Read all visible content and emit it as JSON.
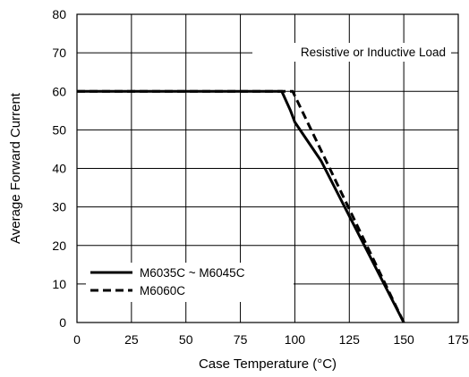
{
  "chart_data": {
    "type": "line",
    "title": "",
    "xlabel": "Case Temperature (°C)",
    "ylabel": "Average Forward Current",
    "xlim": [
      0,
      175
    ],
    "ylim": [
      0,
      80
    ],
    "xticks": [
      "0",
      "25",
      "50",
      "75",
      "100",
      "125",
      "150",
      "175"
    ],
    "yticks": [
      "0",
      "10",
      "20",
      "30",
      "40",
      "50",
      "60",
      "70",
      "80"
    ],
    "grid": true,
    "annotation": "Resistive or Inductive Load",
    "legend_position": "bottom-left",
    "series": [
      {
        "name": "M6035C ~ M6045C",
        "style": "solid",
        "color": "#000000",
        "x": [
          0,
          94,
          98,
          100,
          112,
          150
        ],
        "y": [
          60,
          60,
          55,
          52,
          42,
          0
        ]
      },
      {
        "name": "M6060C",
        "style": "dashed",
        "color": "#000000",
        "x": [
          0,
          99,
          150
        ],
        "y": [
          60,
          60,
          0
        ]
      }
    ]
  }
}
